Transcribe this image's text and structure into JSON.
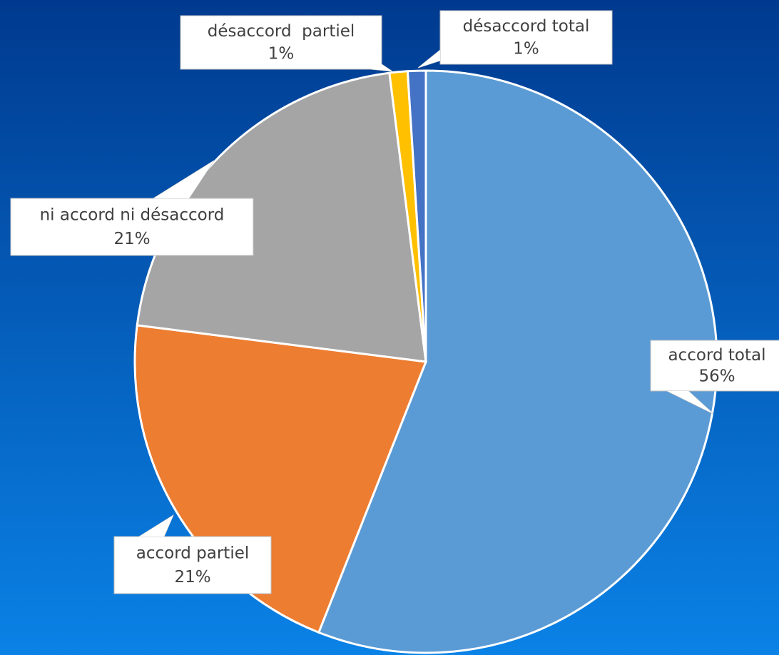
{
  "chart_data": {
    "type": "pie",
    "categories": [
      "accord total",
      "accord partiel",
      "ni accord ni désaccord",
      "désaccord  partiel",
      "désaccord total"
    ],
    "values": [
      56,
      21,
      21,
      1,
      1
    ],
    "value_labels": [
      "56%",
      "21%",
      "21%",
      "1%",
      "1%"
    ],
    "colors": [
      "#5b9bd5",
      "#ed7d31",
      "#a5a5a5",
      "#ffc000",
      "#4472c4"
    ]
  }
}
